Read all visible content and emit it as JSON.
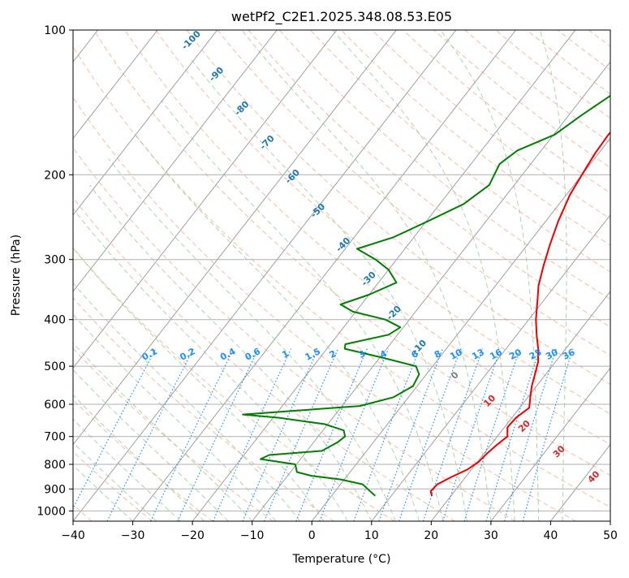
{
  "chart_data": {
    "type": "skew-t log-p sounding (line)",
    "title": "wetPf2_C2E1.2025.348.08.53.E05",
    "xlabel": "Temperature (°C)",
    "ylabel": "Pressure (hPa)",
    "xlim": [
      -40,
      50
    ],
    "ylim": [
      1050,
      100
    ],
    "x_ticks": [
      -40,
      -30,
      -20,
      -10,
      0,
      10,
      20,
      30,
      40,
      50
    ],
    "y_ticks": [
      1000,
      900,
      800,
      700,
      600,
      500,
      400,
      300,
      200,
      100
    ],
    "grid": true,
    "series": [
      {
        "name": "temperature",
        "color": "#ee0000",
        "points": [
          {
            "p": 930,
            "t": 16.8
          },
          {
            "p": 910,
            "t": 16.0
          },
          {
            "p": 880,
            "t": 16.2
          },
          {
            "p": 850,
            "t": 17.6
          },
          {
            "p": 820,
            "t": 19.3
          },
          {
            "p": 790,
            "t": 20.2
          },
          {
            "p": 760,
            "t": 20.5
          },
          {
            "p": 730,
            "t": 21.0
          },
          {
            "p": 700,
            "t": 21.7
          },
          {
            "p": 670,
            "t": 20.5
          },
          {
            "p": 640,
            "t": 20.7
          },
          {
            "p": 610,
            "t": 21.6
          },
          {
            "p": 580,
            "t": 20.4
          },
          {
            "p": 550,
            "t": 19.2
          },
          {
            "p": 520,
            "t": 18.2
          },
          {
            "p": 490,
            "t": 17.1
          },
          {
            "p": 460,
            "t": 15.4
          },
          {
            "p": 430,
            "t": 13.3
          },
          {
            "p": 400,
            "t": 11.2
          },
          {
            "p": 370,
            "t": 9.3
          },
          {
            "p": 340,
            "t": 7.2
          },
          {
            "p": 310,
            "t": 5.5
          },
          {
            "p": 280,
            "t": 3.8
          },
          {
            "p": 250,
            "t": 2.1
          },
          {
            "p": 220,
            "t": 0.6
          },
          {
            "p": 200,
            "t": 0.0
          },
          {
            "p": 180,
            "t": -0.6
          },
          {
            "p": 165,
            "t": -0.8
          },
          {
            "p": 150,
            "t": -0.4
          },
          {
            "p": 135,
            "t": 0.3
          },
          {
            "p": 125,
            "t": 1.3
          },
          {
            "p": 115,
            "t": 3.6
          },
          {
            "p": 108,
            "t": 4.3
          },
          {
            "p": 100,
            "t": 5.0
          }
        ]
      },
      {
        "name": "dewpoint",
        "color": "#008000",
        "points": [
          {
            "p": 930,
            "t": 7.3
          },
          {
            "p": 905,
            "t": 5.5
          },
          {
            "p": 880,
            "t": 3.7
          },
          {
            "p": 860,
            "t": -0.6
          },
          {
            "p": 845,
            "t": -6.0
          },
          {
            "p": 830,
            "t": -8.9
          },
          {
            "p": 800,
            "t": -10.2
          },
          {
            "p": 780,
            "t": -16.7
          },
          {
            "p": 765,
            "t": -15.8
          },
          {
            "p": 750,
            "t": -7.5
          },
          {
            "p": 720,
            "t": -6.0
          },
          {
            "p": 700,
            "t": -5.5
          },
          {
            "p": 680,
            "t": -6.5
          },
          {
            "p": 660,
            "t": -10.5
          },
          {
            "p": 640,
            "t": -19.0
          },
          {
            "p": 630,
            "t": -25.5
          },
          {
            "p": 620,
            "t": -18.0
          },
          {
            "p": 605,
            "t": -7.0
          },
          {
            "p": 580,
            "t": -2.5
          },
          {
            "p": 550,
            "t": -0.7
          },
          {
            "p": 520,
            "t": -1.2
          },
          {
            "p": 500,
            "t": -2.8
          },
          {
            "p": 480,
            "t": -9.5
          },
          {
            "p": 460,
            "t": -17.0
          },
          {
            "p": 450,
            "t": -17.5
          },
          {
            "p": 430,
            "t": -11.5
          },
          {
            "p": 415,
            "t": -10.5
          },
          {
            "p": 400,
            "t": -14.0
          },
          {
            "p": 385,
            "t": -20.5
          },
          {
            "p": 372,
            "t": -23.5
          },
          {
            "p": 355,
            "t": -20.0
          },
          {
            "p": 335,
            "t": -17.0
          },
          {
            "p": 315,
            "t": -20.0
          },
          {
            "p": 300,
            "t": -23.5
          },
          {
            "p": 285,
            "t": -28.0
          },
          {
            "p": 270,
            "t": -23.5
          },
          {
            "p": 250,
            "t": -19.8
          },
          {
            "p": 230,
            "t": -16.0
          },
          {
            "p": 210,
            "t": -14.2
          },
          {
            "p": 190,
            "t": -15.2
          },
          {
            "p": 178,
            "t": -14.0
          },
          {
            "p": 165,
            "t": -9.8
          },
          {
            "p": 150,
            "t": -7.8
          },
          {
            "p": 135,
            "t": -5.2
          },
          {
            "p": 122,
            "t": -4.5
          },
          {
            "p": 113,
            "t": -3.0
          },
          {
            "p": 106,
            "t": -0.7
          },
          {
            "p": 100,
            "t": 1.5
          }
        ]
      }
    ],
    "dry_adiabat_labels": [
      "-100",
      "-90",
      "-80",
      "-70",
      "-60",
      "-50",
      "-40",
      "-30",
      "-20",
      "-10"
    ],
    "mixing_ratio_labels": [
      "0.1",
      "0.2",
      "0.4",
      "0.6",
      "1",
      "1.5",
      "2",
      "3",
      "4",
      "6",
      "8",
      "10",
      "13",
      "16",
      "20",
      "25",
      "30",
      "36"
    ],
    "moist_adiabat_labels": [
      "0",
      "10",
      "20",
      "30",
      "40"
    ],
    "colors": {
      "temperature": "#ee0000",
      "dewpoint": "#008000",
      "isotherm": "#a0a0a0",
      "isobar": "#b0b0b0",
      "dry_adiabat": "#f4a582",
      "moist_adiabat": "#8fc88f",
      "mixing_ratio": "#1e90ff",
      "dry_label": "#1f77b4",
      "moist_label": "#d62728",
      "moist_label_zero": "#7f7f7f"
    }
  }
}
